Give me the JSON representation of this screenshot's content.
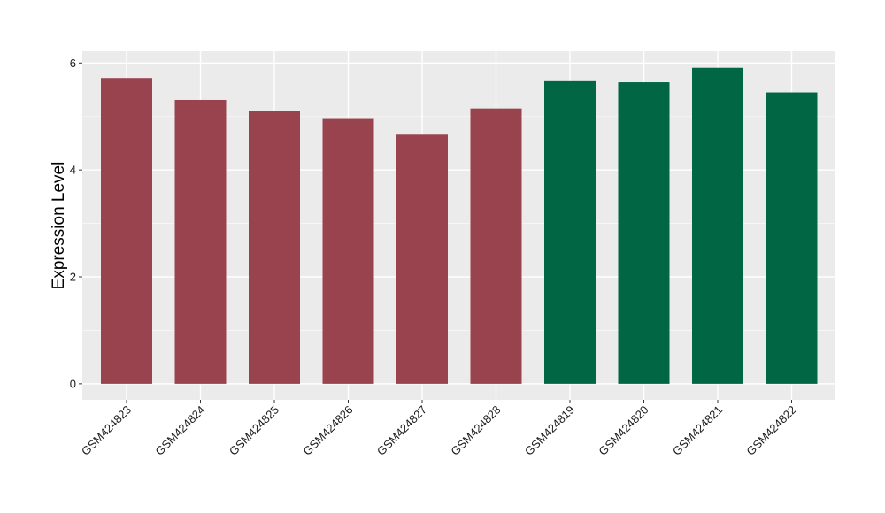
{
  "chart_data": {
    "type": "bar",
    "title": "",
    "xlabel": "",
    "ylabel": "Expression Level",
    "categories": [
      "GSM424823",
      "GSM424824",
      "GSM424825",
      "GSM424826",
      "GSM424827",
      "GSM424828",
      "GSM424819",
      "GSM424820",
      "GSM424821",
      "GSM424822"
    ],
    "values": [
      5.72,
      5.31,
      5.11,
      4.97,
      4.66,
      5.15,
      5.66,
      5.64,
      5.91,
      5.45
    ],
    "groups": [
      0,
      0,
      0,
      0,
      0,
      0,
      1,
      1,
      1,
      1
    ],
    "group_colors": [
      "#99434F",
      "#006644"
    ],
    "ylim": [
      -0.3,
      6.22
    ],
    "yticks": [
      0,
      2,
      4,
      6
    ],
    "grid": true,
    "panel_background": "#EBEBEB",
    "legend": "none"
  }
}
